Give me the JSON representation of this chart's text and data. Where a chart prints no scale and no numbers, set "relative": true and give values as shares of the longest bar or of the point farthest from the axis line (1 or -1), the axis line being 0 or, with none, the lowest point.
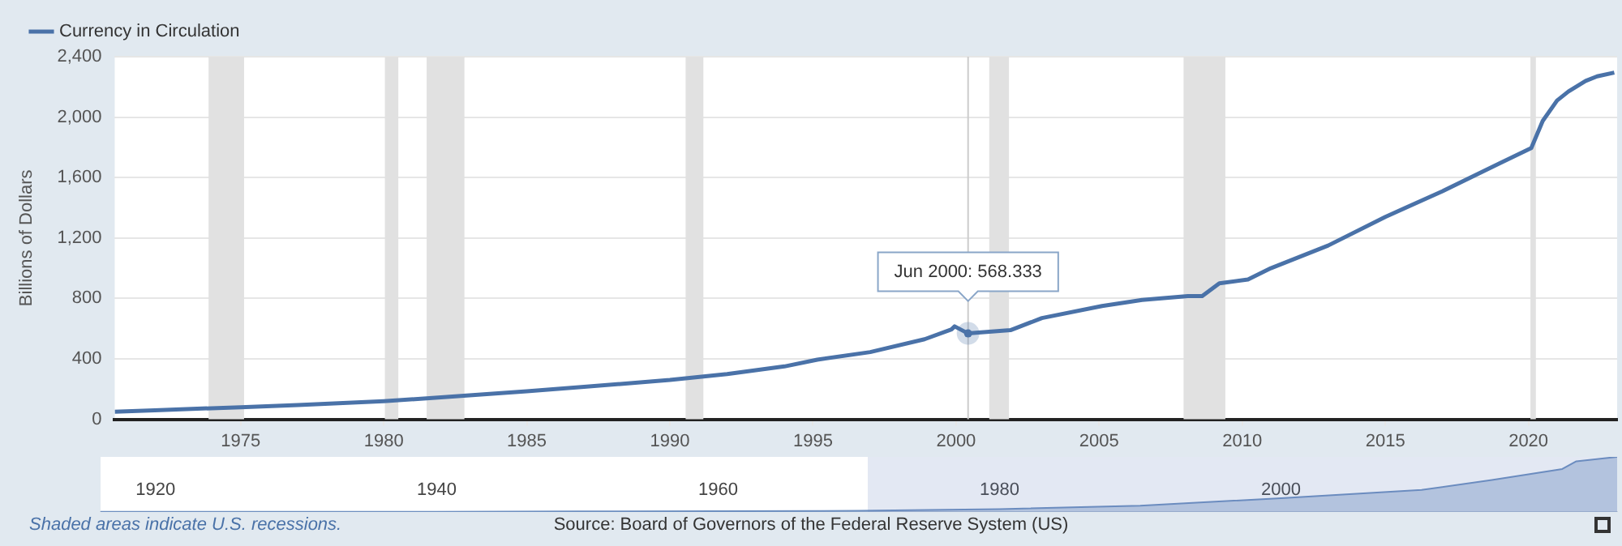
{
  "chart_data": [
    {
      "type": "line",
      "ylabel": "Billions of Dollars",
      "legend": "top left",
      "x": [
        1970.6,
        1972,
        1975,
        1977,
        1980,
        1982,
        1985,
        1987,
        1990,
        1992,
        1994,
        1995.15,
        1997,
        1998.9,
        1999.84,
        1999.95,
        2000.42,
        2001.9,
        2003,
        2005.1,
        2006.5,
        2008.1,
        2008.6,
        2009.2,
        2010.2,
        2011,
        2013,
        2015,
        2017,
        2019,
        2020.1,
        2020.5,
        2021,
        2021.4,
        2022,
        2022.4,
        2023
      ],
      "series": [
        {
          "name": "Currency in Circulation",
          "color": "#4a72a8",
          "values": [
            50,
            60,
            80,
            95,
            120,
            145,
            185,
            215,
            260,
            300,
            350,
            395,
            445,
            530,
            595,
            615,
            568.333,
            590,
            670,
            750,
            790,
            815,
            815,
            900,
            925,
            1000,
            1150,
            1340,
            1510,
            1695,
            1795,
            1975,
            2110,
            2170,
            2240,
            2270,
            2295
          ]
        }
      ],
      "xlim": [
        1970.6,
        2023.1
      ],
      "xticks": [
        1975,
        1980,
        1985,
        1990,
        1995,
        2000,
        2005,
        2010,
        2015,
        2020
      ],
      "ylim": [
        0,
        2400
      ],
      "yticks": [
        0,
        400,
        800,
        {
          "value": 1200,
          "label": "1,200"
        },
        {
          "value": 1600,
          "label": "1,600"
        },
        {
          "value": 2000,
          "label": "2,000"
        },
        {
          "value": 2400,
          "label": "2,400"
        }
      ],
      "grid": "y",
      "bands": [
        {
          "axis": "x",
          "from": 1973.88,
          "to": 1975.12,
          "color": "#e1e1e1"
        },
        {
          "axis": "x",
          "from": 1980.04,
          "to": 1980.51,
          "color": "#e1e1e1"
        },
        {
          "axis": "x",
          "from": 1981.5,
          "to": 1982.82,
          "color": "#e1e1e1"
        },
        {
          "axis": "x",
          "from": 1990.55,
          "to": 1991.17,
          "color": "#e1e1e1"
        },
        {
          "axis": "x",
          "from": 2001.16,
          "to": 2001.85,
          "color": "#e1e1e1"
        },
        {
          "axis": "x",
          "from": 2007.95,
          "to": 2009.41,
          "color": "#e1e1e1"
        },
        {
          "axis": "x",
          "from": 2020.07,
          "to": 2020.26,
          "color": "#e1e1e1"
        }
      ],
      "ref_lines": [
        {
          "axis": "x",
          "value": 2000.42,
          "color": "#cccccc"
        }
      ],
      "annotations": [
        {
          "text": "Jun 2000: 568.333",
          "x": 2000.42,
          "y": 568.333
        },
        "Shaded areas indicate U.S. recessions.",
        "Source: Board of Governors of the Federal Reserve System (US)"
      ]
    },
    {
      "type": "area",
      "relative": true,
      "x": [
        1916.1,
        1930,
        1940,
        1950,
        1960,
        1970,
        1980,
        1990,
        2000,
        2010,
        2015,
        2020,
        2021,
        2023.9
      ],
      "values": [
        0.002,
        0.003,
        0.004,
        0.012,
        0.013,
        0.022,
        0.052,
        0.114,
        0.25,
        0.4,
        0.58,
        0.78,
        0.92,
        1
      ],
      "color": "#6d8fc0",
      "xlim": [
        1916.1,
        2023.9
      ],
      "xticks": [
        1920,
        1940,
        1960,
        1980,
        2000
      ]
    }
  ]
}
